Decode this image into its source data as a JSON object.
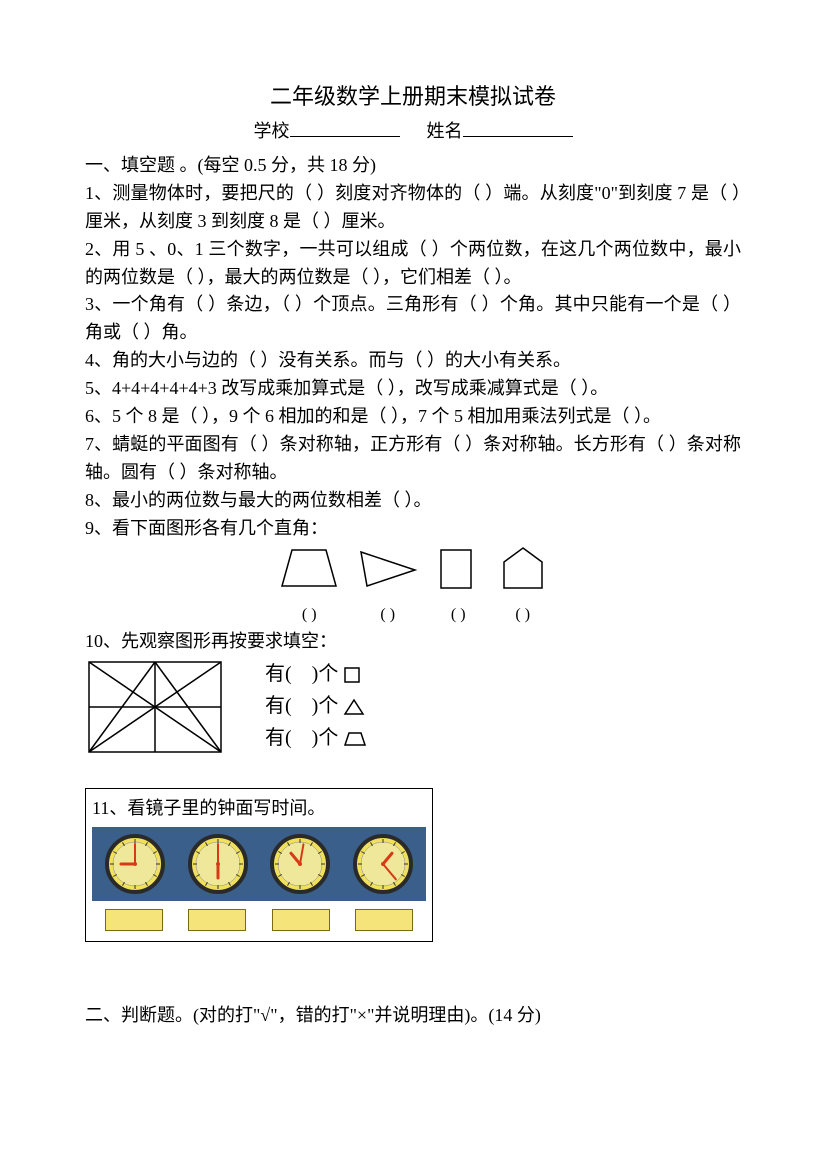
{
  "doc": {
    "title": "二年级数学上册期末模拟试卷",
    "school_label": "学校",
    "name_label": "姓名"
  },
  "sec1": {
    "heading": "一、填空题 。(每空 0.5 分，共 18 分)",
    "q1": "1、测量物体时，要把尺的（    ）刻度对齐物体的（    ）端。从刻度\"0\"到刻度 7 是（    ）厘米，从刻度 3 到刻度 8 是（    ）厘米。",
    "q2": "2、用 5 、0、1 三个数字，一共可以组成（    ）个两位数，在这几个两位数中，最小的两位数是（    ），最大的两位数是（    ），它们相差（    ）。",
    "q3": "3、一个角有（    ）条边，（    ）个顶点。三角形有（    ）个角。其中只能有一个是（    ）角或（    ）角。",
    "q4": "4、角的大小与边的（    ）没有关系。而与（    ）的大小有关系。",
    "q5": "5、4+4+4+4+4+3 改写成乘加算式是（            ），改写成乘减算式是（            ）。",
    "q6": "6、5 个 8 是（    ），9 个 6 相加的和是（    ），7 个 5 相加用乘法列式是（            ）。",
    "q7": "7、蜻蜓的平面图有（    ）条对称轴，正方形有（    ）条对称轴。长方形有（    ）条对称轴。圆有（    ）条对称轴。",
    "q8": "8、最小的两位数与最大的两位数相差（    ）。",
    "q9": "9、看下面图形各有几个直角：",
    "q9_label": "(   )",
    "q10": "10、先观察图形再按要求填空：",
    "q10_line1_a": "有(",
    "q10_line1_b": ")个",
    "q10_line2_a": "有(",
    "q10_line2_b": ")个",
    "q10_line3_a": "有(",
    "q10_line3_b": ")个",
    "q11": "11、看镜子里的钟面写时间。"
  },
  "sec2": {
    "heading": "二、判断题。(对的打\"√\"，错的打\"×\"并说明理由)。(14 分)"
  },
  "colors": {
    "clock_face": "#f0e05a",
    "clock_rim": "#2a2a2a",
    "clock_inner": "#efe89a",
    "hand": "#d83a18",
    "strip": "#3a5f8a",
    "blank_fill": "#f5e47a"
  },
  "clocks": [
    {
      "hour_angle": -90,
      "minute_angle": 0
    },
    {
      "hour_angle": 180,
      "minute_angle": 0
    },
    {
      "hour_angle": -40,
      "minute_angle": 10
    },
    {
      "hour_angle": 40,
      "minute_angle": 140
    }
  ]
}
